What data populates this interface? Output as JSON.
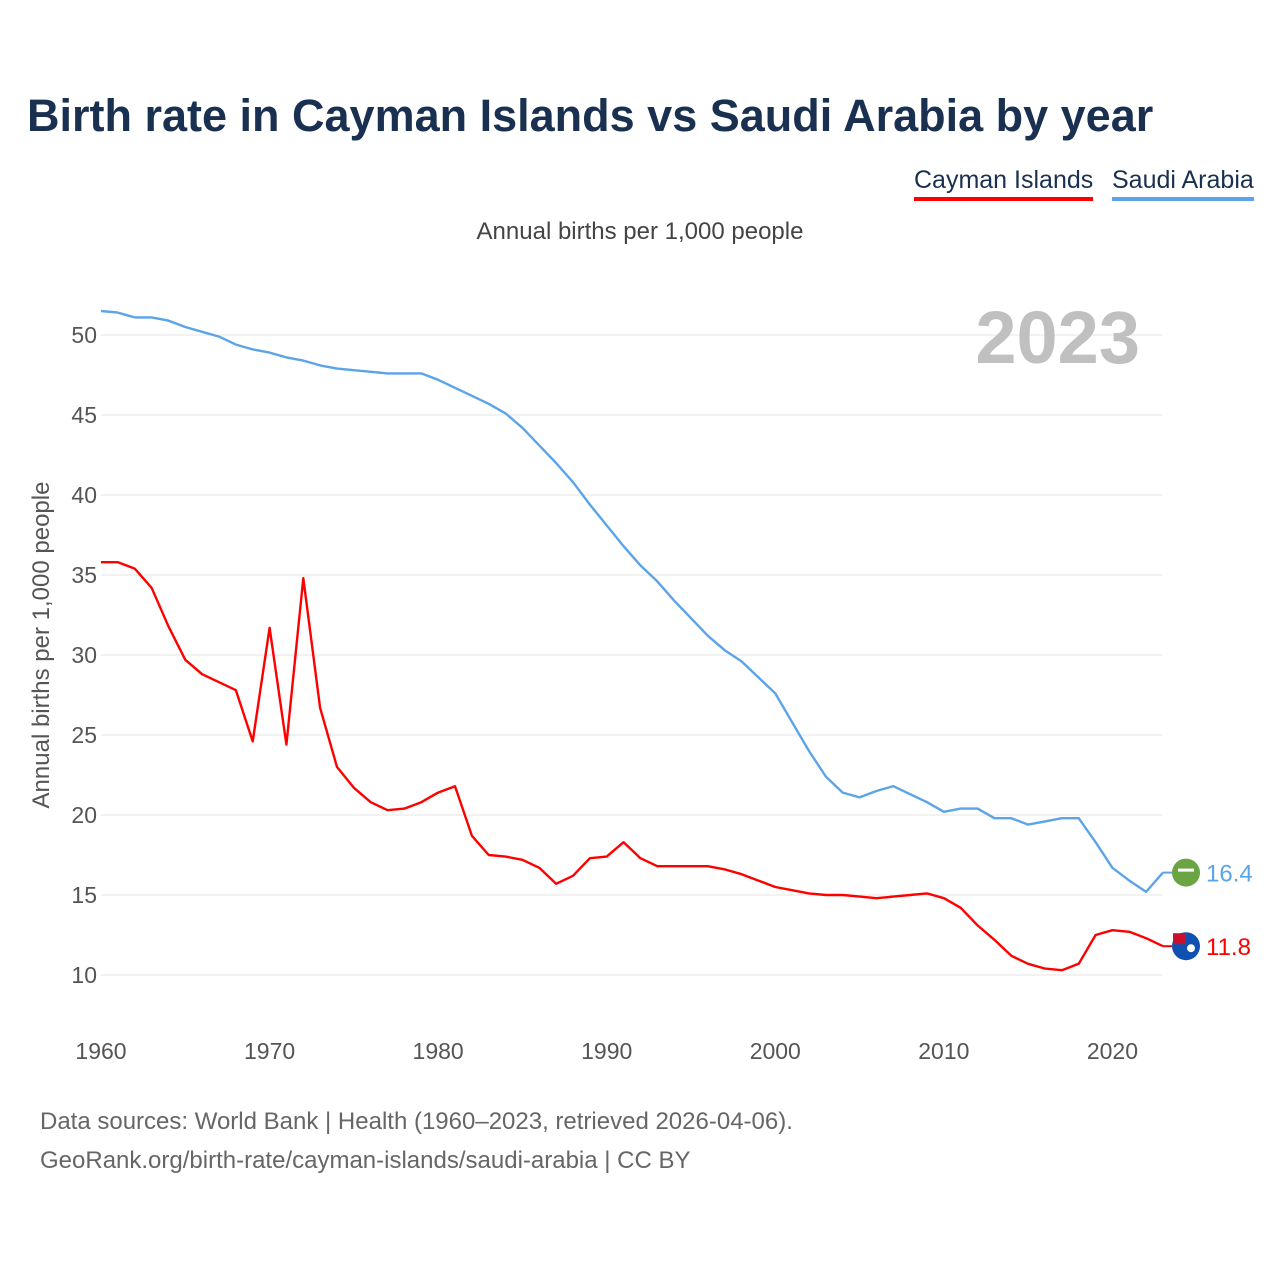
{
  "chart_data": {
    "type": "line",
    "title": "Birth rate in Cayman Islands vs Saudi Arabia by year",
    "subtitle": "Annual births per 1,000 people",
    "ylabel": "Annual births per 1,000 people",
    "xlabel": "",
    "year_label": "2023",
    "xlim": [
      1960,
      2023
    ],
    "ylim": [
      8.4,
      53
    ],
    "x_ticks": [
      1960,
      1970,
      1980,
      1990,
      2000,
      2010,
      2020
    ],
    "y_ticks": [
      10,
      15,
      20,
      25,
      30,
      35,
      40,
      45,
      50
    ],
    "grid": true,
    "legend_position": "top-right",
    "series": [
      {
        "name": "Cayman Islands",
        "color": "#ff0000",
        "end_label": "11.8",
        "values": [
          35.8,
          35.8,
          35.4,
          34.2,
          31.8,
          29.7,
          28.8,
          28.3,
          27.8,
          24.6,
          31.7,
          24.4,
          34.8,
          26.7,
          23.0,
          21.7,
          20.8,
          20.3,
          20.4,
          20.8,
          21.4,
          21.8,
          18.7,
          17.5,
          17.4,
          17.2,
          16.7,
          15.7,
          16.2,
          17.3,
          17.4,
          18.3,
          17.3,
          16.8,
          16.8,
          16.8,
          16.8,
          16.6,
          16.3,
          15.9,
          15.5,
          15.3,
          15.1,
          15.0,
          15.0,
          14.9,
          14.8,
          14.9,
          15.0,
          15.1,
          14.8,
          14.2,
          13.1,
          12.2,
          11.2,
          10.7,
          10.4,
          10.3,
          10.7,
          12.5,
          12.8,
          12.7,
          12.3,
          11.8
        ]
      },
      {
        "name": "Saudi Arabia",
        "color": "#5ba4e8",
        "end_label": "16.4",
        "values": [
          51.5,
          51.4,
          51.1,
          51.1,
          50.9,
          50.5,
          50.2,
          49.9,
          49.4,
          49.1,
          48.9,
          48.6,
          48.4,
          48.1,
          47.9,
          47.8,
          47.7,
          47.6,
          47.6,
          47.6,
          47.2,
          46.7,
          46.2,
          45.7,
          45.1,
          44.2,
          43.1,
          42.0,
          40.8,
          39.4,
          38.1,
          36.8,
          35.6,
          34.6,
          33.4,
          32.3,
          31.2,
          30.3,
          29.6,
          28.6,
          27.6,
          25.8,
          24.0,
          22.4,
          21.4,
          21.1,
          21.5,
          21.8,
          21.3,
          20.8,
          20.2,
          20.4,
          20.4,
          19.8,
          19.8,
          19.4,
          19.6,
          19.8,
          19.8,
          18.3,
          16.7,
          15.9,
          15.2,
          16.4
        ]
      }
    ]
  },
  "footer": {
    "line1": "Data sources: World Bank | Health (1960–2023, retrieved 2026-04-06).",
    "line2": "GeoRank.org/birth-rate/cayman-islands/saudi-arabia | CC BY"
  }
}
